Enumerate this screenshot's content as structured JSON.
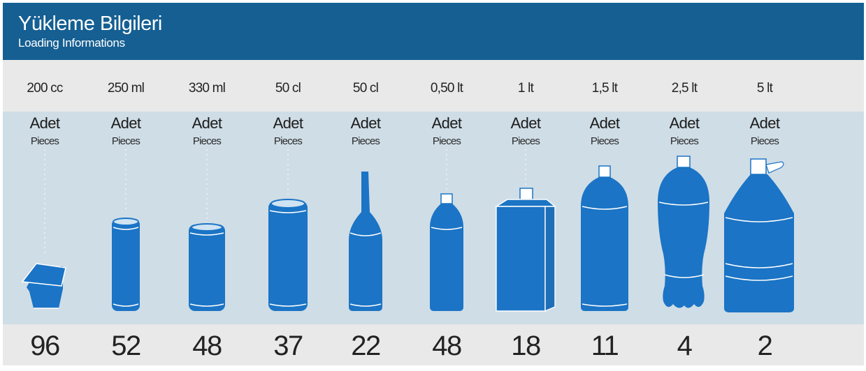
{
  "header": {
    "title": "Yükleme Bilgileri",
    "subtitle": "Loading Informations"
  },
  "colors": {
    "header_bg": "#155f92",
    "band_bg": "#cfdde6",
    "container_blue": "#1b74c5"
  },
  "items": [
    {
      "size": "200 cc",
      "adet": "Adet",
      "pieces": "Pieces",
      "count": "96",
      "icon": "yogurt-cup-icon"
    },
    {
      "size": "250 ml",
      "adet": "Adet",
      "pieces": "Pieces",
      "count": "52",
      "icon": "slim-can-icon"
    },
    {
      "size": "330 ml",
      "adet": "Adet",
      "pieces": "Pieces",
      "count": "48",
      "icon": "can-icon"
    },
    {
      "size": "50 cl",
      "adet": "Adet",
      "pieces": "Pieces",
      "count": "37",
      "icon": "large-can-icon"
    },
    {
      "size": "50 cl",
      "adet": "Adet",
      "pieces": "Pieces",
      "count": "22",
      "icon": "glass-bottle-icon"
    },
    {
      "size": "0,50 lt",
      "adet": "Adet",
      "pieces": "Pieces",
      "count": "48",
      "icon": "small-bottle-icon"
    },
    {
      "size": "1 lt",
      "adet": "Adet",
      "pieces": "Pieces",
      "count": "18",
      "icon": "carton-icon"
    },
    {
      "size": "1,5 lt",
      "adet": "Adet",
      "pieces": "Pieces",
      "count": "11",
      "icon": "bottle-icon"
    },
    {
      "size": "2,5 lt",
      "adet": "Adet",
      "pieces": "Pieces",
      "count": "4",
      "icon": "petaloid-bottle-icon"
    },
    {
      "size": "5 lt",
      "adet": "Adet",
      "pieces": "Pieces",
      "count": "2",
      "icon": "jug-icon"
    }
  ]
}
